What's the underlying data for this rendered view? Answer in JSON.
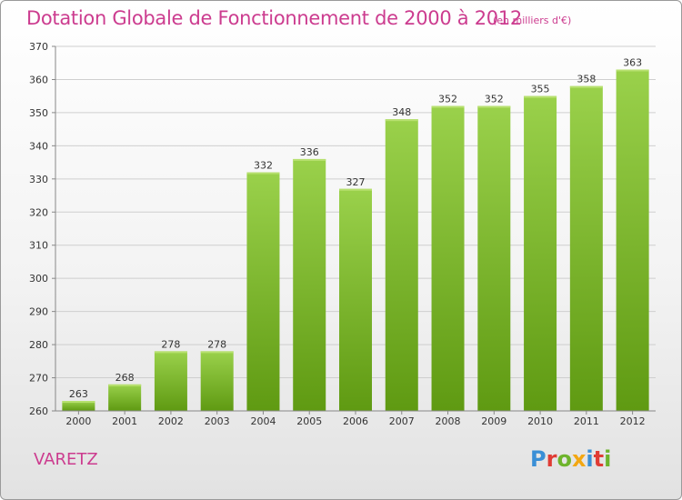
{
  "title": "Dotation Globale de Fonctionnement de 2000 à 2012",
  "unit": "(en milliers d'€)",
  "commune": "VARETZ",
  "logo": {
    "letters": [
      "P",
      "r",
      "o",
      "x",
      "i",
      "t",
      "i"
    ],
    "colors": [
      "#3a8fd6",
      "#e03c35",
      "#6eb42c",
      "#f3a712",
      "#3a8fd6",
      "#e03c35",
      "#6eb42c"
    ]
  },
  "colors": {
    "title": "#cc3c8f",
    "bar_top": "#9ad14b",
    "bar_bottom": "#5f9a12",
    "grid": "#cfcfcf"
  },
  "chart_data": {
    "type": "bar",
    "categories": [
      "2000",
      "2001",
      "2002",
      "2003",
      "2004",
      "2005",
      "2006",
      "2007",
      "2008",
      "2009",
      "2010",
      "2011",
      "2012"
    ],
    "values": [
      263,
      268,
      278,
      278,
      332,
      336,
      327,
      348,
      352,
      352,
      355,
      358,
      363
    ],
    "ylim": [
      260,
      370
    ],
    "yticks": [
      260,
      270,
      280,
      290,
      300,
      310,
      320,
      330,
      340,
      350,
      360,
      370
    ],
    "grid": true
  }
}
